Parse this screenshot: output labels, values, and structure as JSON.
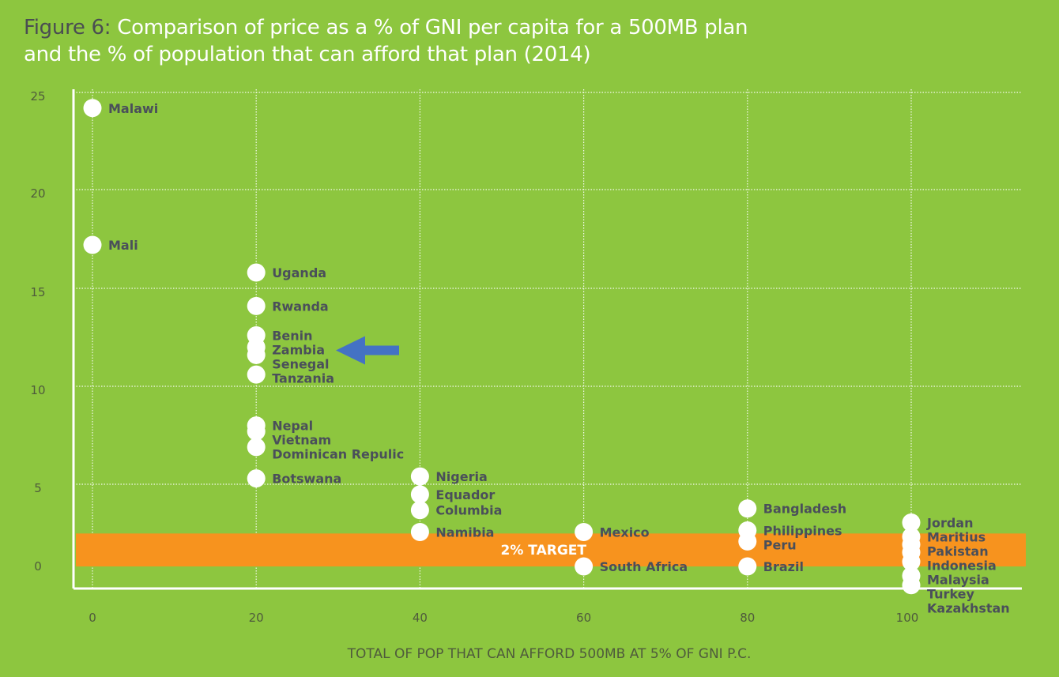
{
  "title": {
    "prefix": "Figure 6:",
    "line1": " Comparison of price as a % of GNI per capita for a 500MB plan",
    "line2": "and the % of population that can afford that plan (2014)"
  },
  "chart_data": {
    "type": "scatter",
    "title": "Figure 6: Comparison of price as a % of GNI per capita for a 500MB plan and the % of population that can afford that plan (2014)",
    "xlabel": "TOTAL OF POP THAT CAN AFFORD 500MB AT 5% OF GNI P.C.",
    "ylabel": "",
    "xlim": [
      0,
      100
    ],
    "ylim": [
      0,
      25
    ],
    "xticks": [
      "0",
      "20",
      "40",
      "60",
      "80",
      "100"
    ],
    "yticks": [
      "0",
      "5",
      "10",
      "15",
      "20",
      "25"
    ],
    "grid": true,
    "target": {
      "label": "2% TARGET",
      "band": [
        0.3,
        1.7
      ],
      "color": "#f7931e"
    },
    "highlight": {
      "country": "Zambia",
      "marker": "left-arrow",
      "color": "#4472c4"
    },
    "points": [
      {
        "name": "Malawi",
        "x": 0,
        "y": 24.4
      },
      {
        "name": "Mali",
        "x": 0,
        "y": 17.4
      },
      {
        "name": "Uganda",
        "x": 20,
        "y": 16.0
      },
      {
        "name": "Rwanda",
        "x": 20,
        "y": 14.3
      },
      {
        "name": "Benin",
        "x": 20,
        "y": 12.8
      },
      {
        "name": "Zambia",
        "x": 20,
        "y": 12.2
      },
      {
        "name": "Senegal",
        "x": 20,
        "y": 11.8
      },
      {
        "name": "Tanzania",
        "x": 20,
        "y": 10.8
      },
      {
        "name": "Nepal",
        "x": 20,
        "y": 8.2
      },
      {
        "name": "Vietnam",
        "x": 20,
        "y": 7.9
      },
      {
        "name": "Dominican Repulic",
        "x": 20,
        "y": 7.1
      },
      {
        "name": "Botswana",
        "x": 20,
        "y": 5.5
      },
      {
        "name": "Nigeria",
        "x": 40,
        "y": 5.6
      },
      {
        "name": "Equador",
        "x": 40,
        "y": 4.6
      },
      {
        "name": "Columbia",
        "x": 40,
        "y": 3.6
      },
      {
        "name": "Namibia",
        "x": 40,
        "y": 2.2
      },
      {
        "name": "Mexico",
        "x": 60,
        "y": 2.2
      },
      {
        "name": "South Africa",
        "x": 60,
        "y": 0.0
      },
      {
        "name": "Bangladesh",
        "x": 80,
        "y": 3.7
      },
      {
        "name": "Philippines",
        "x": 80,
        "y": 2.3
      },
      {
        "name": "Peru",
        "x": 80,
        "y": 1.6
      },
      {
        "name": "Brazil",
        "x": 80,
        "y": 0.0
      },
      {
        "name": "Jordan",
        "x": 100,
        "y": 2.8
      },
      {
        "name": "Maritius",
        "x": 100,
        "y": 1.9
      },
      {
        "name": "Pakistan",
        "x": 100,
        "y": 1.4
      },
      {
        "name": "Indonesia",
        "x": 100,
        "y": 0.9
      },
      {
        "name": "Malaysia",
        "x": 100,
        "y": 0.3
      },
      {
        "name": "Turkey",
        "x": 100,
        "y": -0.6
      },
      {
        "name": "Kazakhstan",
        "x": 100,
        "y": -1.2
      }
    ]
  },
  "colors": {
    "background": "#8dc63f",
    "point": "#ffffff",
    "label": "#4a4f5a",
    "target": "#f7931e",
    "arrow": "#4472c4"
  }
}
